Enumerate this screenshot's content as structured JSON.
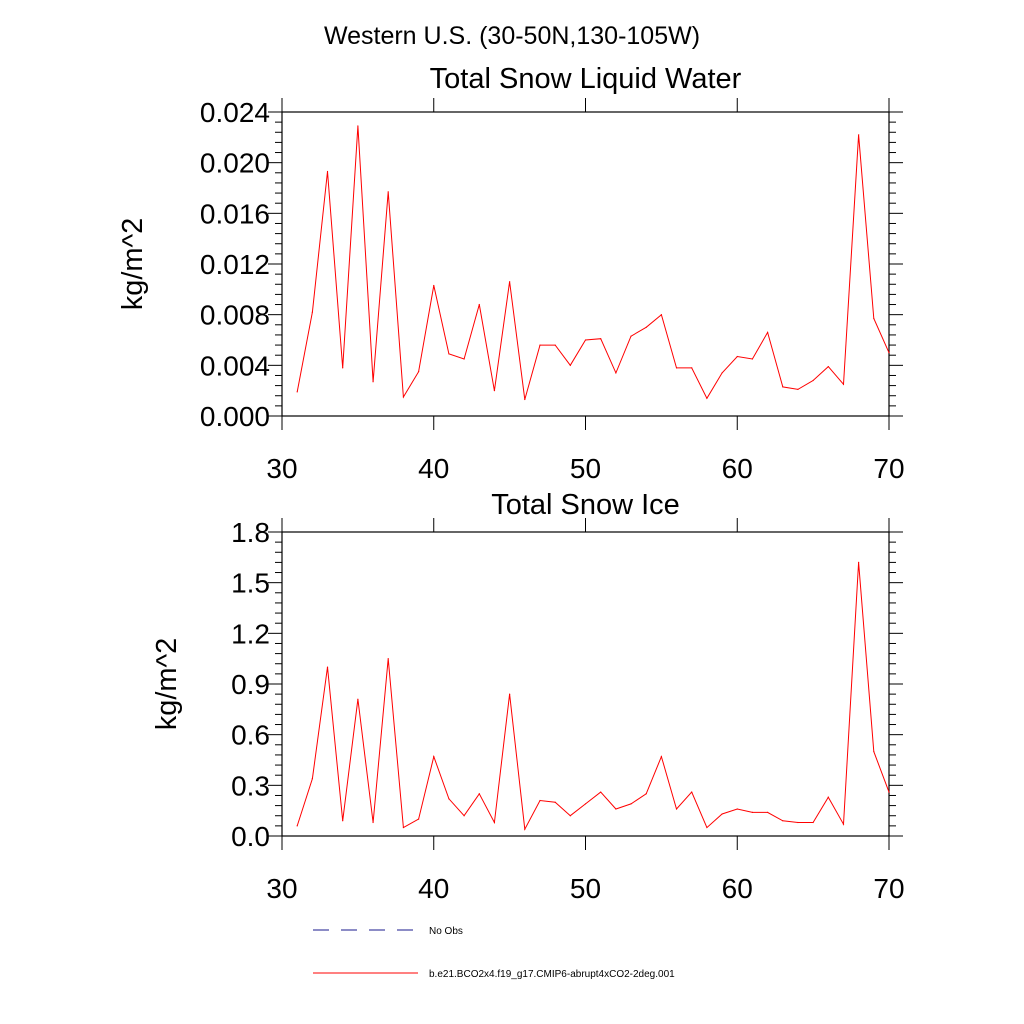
{
  "figure_title": "Western U.S. (30-50N,130-105W)",
  "chart_data": [
    {
      "type": "line",
      "title": "Total Snow Liquid Water",
      "xlabel": "",
      "ylabel": "kg/m^2",
      "xlim": [
        30,
        70
      ],
      "ylim": [
        0,
        0.024
      ],
      "xticks": [
        30,
        40,
        50,
        60,
        70
      ],
      "xtick_labels": [
        "30",
        "40",
        "50",
        "60",
        "70"
      ],
      "yticks": [
        0,
        0.004,
        0.008,
        0.012,
        0.016,
        0.02,
        0.024
      ],
      "ytick_labels": [
        "0.000",
        "0.004",
        "0.008",
        "0.012",
        "0.016",
        "0.020",
        "0.024"
      ],
      "grid": false,
      "series": [
        {
          "name": "b.e21.BCO2x4.f19_g17.CMIP6-abrupt4xCO2-2deg.001",
          "color": "#ff0000",
          "x": [
            31,
            32,
            33,
            34,
            35,
            36,
            37,
            38,
            39,
            40,
            41,
            42,
            43,
            44,
            45,
            46,
            47,
            48,
            49,
            50,
            51,
            52,
            53,
            54,
            55,
            56,
            57,
            58,
            59,
            60,
            61,
            62,
            63,
            64,
            65,
            66,
            67,
            68,
            69,
            70
          ],
          "values": [
            0.0019,
            0.0082,
            0.0193,
            0.0038,
            0.0229,
            0.0027,
            0.0177,
            0.0015,
            0.0035,
            0.0103,
            0.0049,
            0.0045,
            0.0088,
            0.002,
            0.0106,
            0.0013,
            0.0056,
            0.0056,
            0.004,
            0.006,
            0.0061,
            0.0034,
            0.0063,
            0.007,
            0.008,
            0.0038,
            0.0038,
            0.0014,
            0.0034,
            0.0047,
            0.0045,
            0.0066,
            0.0023,
            0.0021,
            0.0028,
            0.0039,
            0.0025,
            0.0222,
            0.0077,
            0.005
          ]
        }
      ]
    },
    {
      "type": "line",
      "title": "Total Snow Ice",
      "xlabel": "",
      "ylabel": "kg/m^2",
      "xlim": [
        30,
        70
      ],
      "ylim": [
        0,
        1.8
      ],
      "xticks": [
        30,
        40,
        50,
        60,
        70
      ],
      "xtick_labels": [
        "30",
        "40",
        "50",
        "60",
        "70"
      ],
      "yticks": [
        0,
        0.3,
        0.6,
        0.9,
        1.2,
        1.5,
        1.8
      ],
      "ytick_labels": [
        "0.0",
        "0.3",
        "0.6",
        "0.9",
        "1.2",
        "1.5",
        "1.8"
      ],
      "grid": false,
      "series": [
        {
          "name": "b.e21.BCO2x4.f19_g17.CMIP6-abrupt4xCO2-2deg.001",
          "color": "#ff0000",
          "x": [
            31,
            32,
            33,
            34,
            35,
            36,
            37,
            38,
            39,
            40,
            41,
            42,
            43,
            44,
            45,
            46,
            47,
            48,
            49,
            50,
            51,
            52,
            53,
            54,
            55,
            56,
            57,
            58,
            59,
            60,
            61,
            62,
            63,
            64,
            65,
            66,
            67,
            68,
            69,
            70
          ],
          "values": [
            0.06,
            0.34,
            1.0,
            0.09,
            0.81,
            0.08,
            1.05,
            0.05,
            0.1,
            0.47,
            0.22,
            0.12,
            0.25,
            0.08,
            0.84,
            0.04,
            0.21,
            0.2,
            0.12,
            0.19,
            0.26,
            0.16,
            0.19,
            0.25,
            0.47,
            0.16,
            0.26,
            0.05,
            0.13,
            0.16,
            0.14,
            0.14,
            0.09,
            0.08,
            0.08,
            0.23,
            0.07,
            1.62,
            0.5,
            0.26
          ]
        }
      ]
    }
  ],
  "legend": {
    "placement": "bottom-left",
    "items": [
      {
        "label": "No Obs",
        "color": "#1a1a8c",
        "style": "dashed"
      },
      {
        "label": "b.e21.BCO2x4.f19_g17.CMIP6-abrupt4xCO2-2deg.001",
        "color": "#ff0000",
        "style": "solid"
      }
    ]
  }
}
